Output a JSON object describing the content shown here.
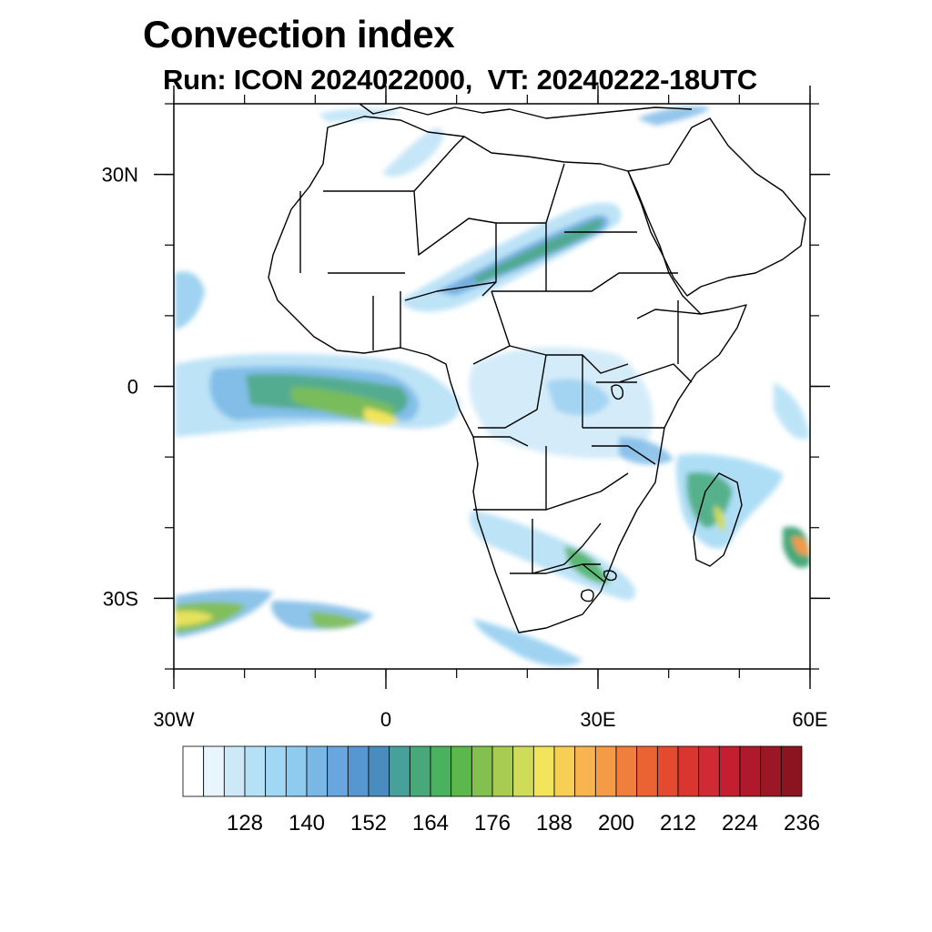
{
  "header": {
    "title": "Convection index",
    "subtitle": "Run: ICON 2024022000,  VT: 20240222-18UTC"
  },
  "map": {
    "lon_range": [
      -30,
      60
    ],
    "lat_range": [
      -40,
      40
    ],
    "x_ticks": [
      {
        "lon": -30,
        "label": "30W"
      },
      {
        "lon": 0,
        "label": "0"
      },
      {
        "lon": 30,
        "label": "30E"
      },
      {
        "lon": 60,
        "label": "60E"
      }
    ],
    "y_ticks": [
      {
        "lat": 30,
        "label": "30N"
      },
      {
        "lat": 0,
        "label": "0"
      },
      {
        "lat": -30,
        "label": "30S"
      }
    ],
    "minor_lon_step": 10,
    "minor_lat_step": 10
  },
  "colorbar": {
    "colors": [
      "#ffffff",
      "#e8f5fc",
      "#cde9f8",
      "#b6e0f6",
      "#a0d8f4",
      "#8ecbee",
      "#79b8e6",
      "#67a7dd",
      "#5797d1",
      "#4b8cbf",
      "#48a09a",
      "#47a97a",
      "#4ab25f",
      "#5cb84a",
      "#82c04f",
      "#a8cc51",
      "#cedc59",
      "#f2e55b",
      "#f8cf55",
      "#f8b44e",
      "#f59a46",
      "#f07f3d",
      "#ec6333",
      "#e44a2f",
      "#db3530",
      "#d02a34",
      "#c31f31",
      "#b0192d",
      "#9c1626",
      "#8b1420"
    ],
    "labels": [
      "128",
      "140",
      "152",
      "164",
      "176",
      "188",
      "200",
      "212",
      "224",
      "236"
    ],
    "label_start_index": 2,
    "label_every": 3
  }
}
